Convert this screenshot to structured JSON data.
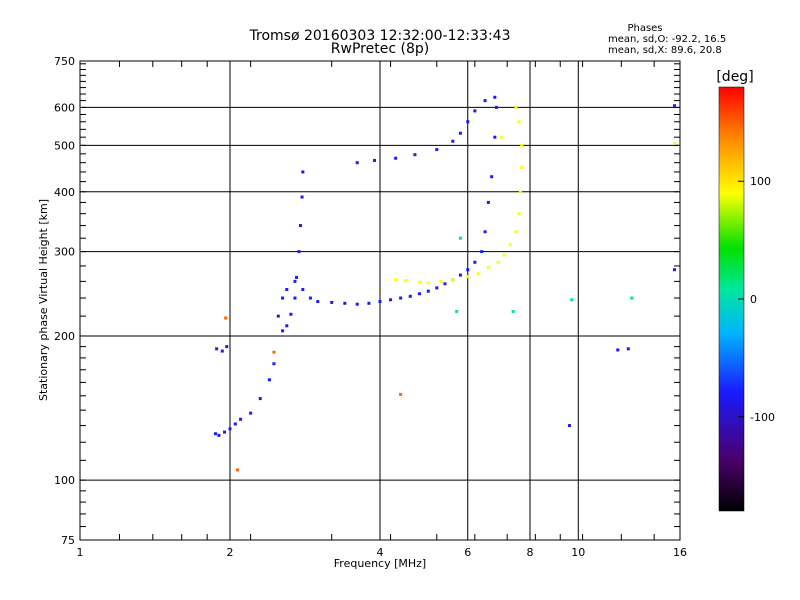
{
  "chart_data": {
    "type": "scatter",
    "title": "Tromsø 20160303 12:32:00-12:33:43",
    "subtitle": "RwPretec (8p)",
    "xlabel": "Frequency [MHz]",
    "ylabel": "Stationary phase Virtual Height [km]",
    "xscale": "log",
    "yscale": "log",
    "xlim": [
      1,
      16
    ],
    "ylim": [
      75,
      750
    ],
    "x_ticks": [
      1,
      2,
      4,
      6,
      8,
      10,
      16
    ],
    "x_tick_labels": [
      "1",
      "2",
      "4",
      "6",
      "8",
      "10",
      "16"
    ],
    "y_ticks": [
      75,
      100,
      200,
      300,
      400,
      500,
      600,
      750
    ],
    "y_tick_labels": [
      "75",
      "100",
      "200",
      "300",
      "400",
      "500",
      "600",
      "750"
    ],
    "grid": true,
    "info": {
      "heading": "Phases",
      "line1": "mean, sd,O: -92.2, 16.5",
      "line2": "mean, sd,X:  89.6, 20.8"
    },
    "colorbar": {
      "label": "[deg]",
      "range": [
        -180,
        180
      ],
      "ticks": [
        100,
        0,
        -100
      ],
      "tick_labels": [
        "100",
        "0",
        "-100"
      ]
    },
    "series": [
      {
        "color_phase": -100,
        "points": [
          [
            1.87,
            125
          ],
          [
            1.9,
            124
          ],
          [
            1.95,
            126
          ],
          [
            2.0,
            128
          ],
          [
            2.05,
            131
          ],
          [
            2.1,
            134
          ],
          [
            2.2,
            138
          ],
          [
            2.3,
            148
          ],
          [
            2.4,
            162
          ],
          [
            2.45,
            175
          ],
          [
            1.88,
            188
          ],
          [
            1.93,
            186
          ],
          [
            1.97,
            190
          ],
          [
            2.55,
            205
          ],
          [
            2.6,
            210
          ],
          [
            2.65,
            222
          ],
          [
            2.7,
            240
          ],
          [
            2.72,
            265
          ],
          [
            2.75,
            300
          ],
          [
            2.77,
            340
          ],
          [
            2.79,
            390
          ],
          [
            2.8,
            440
          ],
          [
            2.5,
            220
          ],
          [
            2.55,
            240
          ],
          [
            2.6,
            250
          ],
          [
            2.7,
            260
          ],
          [
            2.8,
            250
          ],
          [
            2.9,
            240
          ],
          [
            3.0,
            236
          ],
          [
            3.2,
            235
          ],
          [
            3.4,
            234
          ],
          [
            3.6,
            233
          ],
          [
            3.8,
            234
          ],
          [
            4.0,
            236
          ],
          [
            4.2,
            238
          ],
          [
            4.4,
            240
          ],
          [
            4.6,
            242
          ],
          [
            4.8,
            245
          ],
          [
            5.0,
            248
          ],
          [
            5.2,
            252
          ],
          [
            5.4,
            257
          ],
          [
            5.6,
            262
          ],
          [
            5.8,
            268
          ],
          [
            6.0,
            275
          ],
          [
            6.2,
            285
          ],
          [
            6.4,
            300
          ],
          [
            6.5,
            330
          ],
          [
            6.6,
            380
          ],
          [
            6.7,
            430
          ],
          [
            6.8,
            520
          ],
          [
            6.85,
            600
          ],
          [
            6.8,
            630
          ],
          [
            3.6,
            460
          ],
          [
            3.9,
            465
          ],
          [
            4.3,
            470
          ],
          [
            4.7,
            478
          ],
          [
            5.2,
            490
          ],
          [
            5.6,
            510
          ],
          [
            5.8,
            530
          ],
          [
            6.0,
            560
          ],
          [
            6.2,
            590
          ],
          [
            6.5,
            620
          ],
          [
            9.6,
            130
          ],
          [
            15.6,
            605
          ],
          [
            15.6,
            275
          ],
          [
            12.6,
            188
          ],
          [
            12.0,
            187
          ]
        ]
      },
      {
        "color_phase": 100,
        "points": [
          [
            4.3,
            262
          ],
          [
            4.5,
            261
          ],
          [
            4.8,
            259
          ],
          [
            5.0,
            258
          ],
          [
            5.3,
            260
          ],
          [
            5.6,
            262
          ],
          [
            6.0,
            266
          ],
          [
            6.3,
            270
          ],
          [
            6.6,
            278
          ],
          [
            6.9,
            285
          ],
          [
            7.1,
            295
          ],
          [
            7.3,
            310
          ],
          [
            7.5,
            330
          ],
          [
            7.6,
            360
          ],
          [
            7.65,
            400
          ],
          [
            7.7,
            450
          ],
          [
            7.7,
            500
          ],
          [
            7.6,
            560
          ],
          [
            7.5,
            600
          ],
          [
            7.0,
            520
          ],
          [
            15.6,
            505
          ]
        ]
      },
      {
        "color_phase": 0,
        "points": [
          [
            9.7,
            238
          ],
          [
            12.8,
            240
          ],
          [
            5.8,
            320
          ],
          [
            5.7,
            225
          ],
          [
            7.4,
            225
          ]
        ]
      },
      {
        "color_phase": 150,
        "points": [
          [
            4.4,
            151
          ],
          [
            2.45,
            185
          ],
          [
            1.96,
            218
          ],
          [
            2.07,
            105
          ]
        ]
      }
    ]
  }
}
